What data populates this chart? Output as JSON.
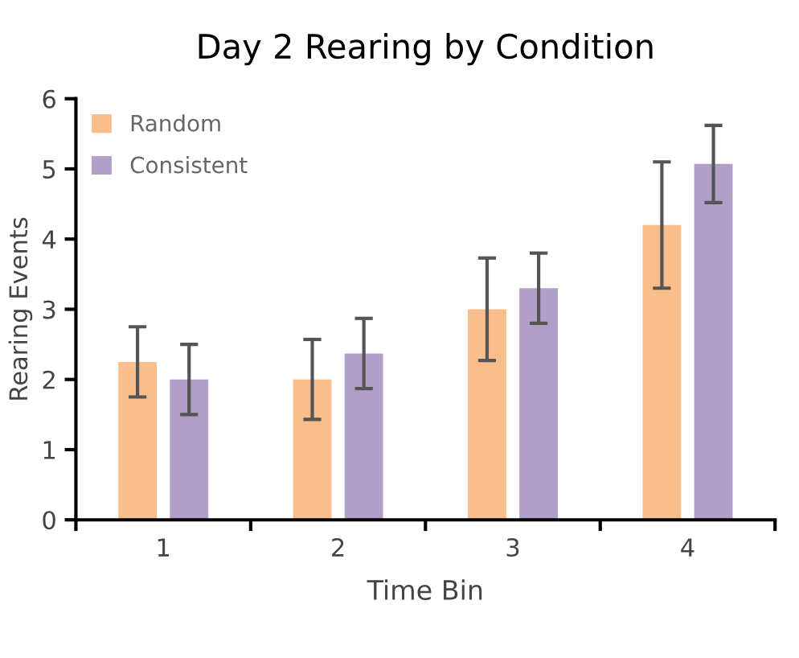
{
  "chart_data": {
    "type": "bar",
    "title": "Day 2 Rearing by Condition",
    "xlabel": "Time Bin",
    "ylabel": "Rearing Events",
    "categories": [
      "1",
      "2",
      "3",
      "4"
    ],
    "series": [
      {
        "name": "Random",
        "color": "#f9be8c",
        "values": [
          2.25,
          2.0,
          3.0,
          4.2
        ],
        "errors": [
          0.5,
          0.57,
          0.73,
          0.9
        ]
      },
      {
        "name": "Consistent",
        "color": "#b19fc8",
        "values": [
          2.0,
          2.37,
          3.3,
          5.07
        ],
        "errors": [
          0.5,
          0.5,
          0.5,
          0.55
        ]
      }
    ],
    "ylim": [
      0,
      6
    ],
    "yticks": [
      0,
      1,
      2,
      3,
      4,
      5,
      6
    ],
    "grid": false,
    "legend": "top left"
  }
}
